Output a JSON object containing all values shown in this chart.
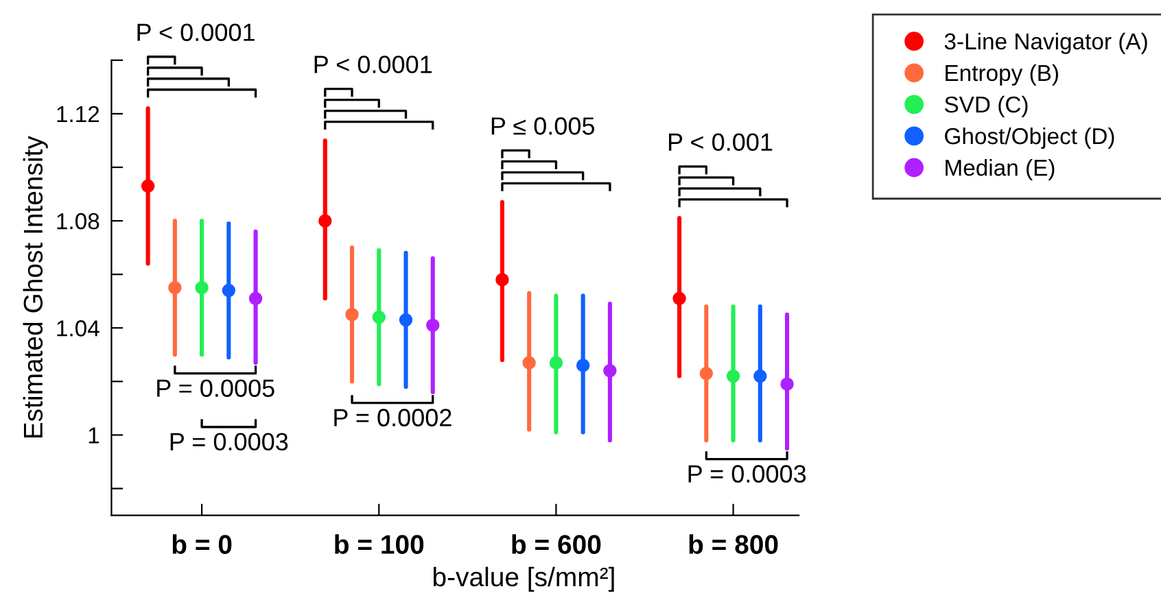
{
  "chart_data": {
    "type": "scatter",
    "xlabel": "b-value [s/mm²]",
    "ylabel": "Estimated Ghost Intensity",
    "categories": [
      "b = 0",
      "b = 100",
      "b = 600",
      "b = 800"
    ],
    "ylim": [
      0.97,
      1.14
    ],
    "yticks": [
      {
        "value": 0.98,
        "label": null
      },
      1,
      {
        "value": 1.02,
        "label": null
      },
      1.04,
      {
        "value": 1.06,
        "label": null
      },
      1.08,
      {
        "value": 1.1,
        "label": null
      },
      1.12,
      {
        "value": 1.14,
        "label": null
      }
    ],
    "series": [
      {
        "name": "3-Line Navigator (A)",
        "color": "#ff0000",
        "values": [
          1.093,
          1.08,
          1.058,
          1.051
        ],
        "errors": [
          [
            1.064,
            1.122
          ],
          [
            1.051,
            1.11
          ],
          [
            1.028,
            1.087
          ],
          [
            1.022,
            1.081
          ]
        ]
      },
      {
        "name": "Entropy (B)",
        "color": "#ff6a3d",
        "values": [
          1.055,
          1.045,
          1.027,
          1.023
        ],
        "errors": [
          [
            1.03,
            1.08
          ],
          [
            1.02,
            1.07
          ],
          [
            1.002,
            1.053
          ],
          [
            0.998,
            1.048
          ]
        ]
      },
      {
        "name": "SVD (C)",
        "color": "#22ee55",
        "values": [
          1.055,
          1.044,
          1.027,
          1.022
        ],
        "errors": [
          [
            1.03,
            1.08
          ],
          [
            1.019,
            1.069
          ],
          [
            1.001,
            1.052
          ],
          [
            0.998,
            1.048
          ]
        ]
      },
      {
        "name": "Ghost/Object (D)",
        "color": "#1060ff",
        "values": [
          1.054,
          1.043,
          1.026,
          1.022
        ],
        "errors": [
          [
            1.029,
            1.079
          ],
          [
            1.018,
            1.068
          ],
          [
            1.001,
            1.052
          ],
          [
            0.998,
            1.048
          ]
        ]
      },
      {
        "name": "Median (E)",
        "color": "#b020ff",
        "values": [
          1.051,
          1.041,
          1.024,
          1.019
        ],
        "errors": [
          [
            1.027,
            1.076
          ],
          [
            1.016,
            1.066
          ],
          [
            0.998,
            1.049
          ],
          [
            0.995,
            1.045
          ]
        ]
      }
    ],
    "annotations": [
      "P < 0.0001",
      "P < 0.0001",
      "P ≤ 0.005",
      "P < 0.001",
      "P = 0.0005",
      "P = 0.0003",
      "P = 0.0002",
      "P = 0.0003"
    ],
    "marker": "circle",
    "grid": false,
    "legend": "top right"
  }
}
